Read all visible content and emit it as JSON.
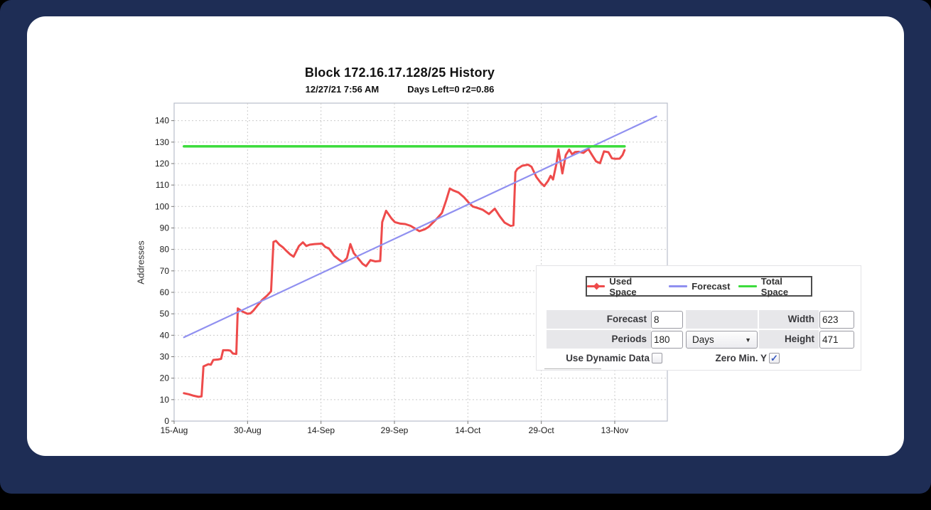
{
  "page": {
    "outer_background": "#000000",
    "frame_color": "#1e2d55",
    "card_color": "#ffffff"
  },
  "chart_data": {
    "type": "line",
    "title": "Block 172.16.17.128/25 History",
    "subtitle_left": "12/27/21 7:56 AM",
    "subtitle_right": "Days Left=0 r2=0.86",
    "grid": true,
    "legend_position": "overlay-bottom-right",
    "x_axis": {
      "unit": "date (days since 15-Aug)",
      "tick_labels": [
        "15-Aug",
        "30-Aug",
        "14-Sep",
        "29-Sep",
        "14-Oct",
        "29-Oct",
        "13-Nov"
      ],
      "tick_days": [
        0,
        15,
        30,
        45,
        60,
        75,
        90
      ],
      "domain_days": [
        0,
        100.8
      ]
    },
    "y_axis": {
      "label": "Addresses",
      "ticks": [
        0,
        10,
        20,
        30,
        40,
        50,
        60,
        70,
        80,
        90,
        100,
        110,
        120,
        130,
        140
      ],
      "domain": [
        0,
        148.2
      ]
    },
    "series": [
      {
        "name": "Used Space",
        "color": "#ee4b4b",
        "stroke_width": 3,
        "points": [
          [
            2,
            13
          ],
          [
            3,
            12.5
          ],
          [
            4,
            11.8
          ],
          [
            5,
            11.3
          ],
          [
            5.6,
            11.5
          ],
          [
            6,
            25.5
          ],
          [
            7,
            26.5
          ],
          [
            7.5,
            26.3
          ],
          [
            8,
            28.5
          ],
          [
            9,
            28.7
          ],
          [
            9.6,
            29
          ],
          [
            10,
            33
          ],
          [
            11,
            33
          ],
          [
            11.5,
            32.8
          ],
          [
            12,
            31.5
          ],
          [
            12.7,
            31.3
          ],
          [
            13,
            52.5
          ],
          [
            14,
            51
          ],
          [
            15,
            50
          ],
          [
            15.6,
            50.2
          ],
          [
            16.2,
            51.5
          ],
          [
            17,
            53.8
          ],
          [
            18,
            56.5
          ],
          [
            19,
            58.5
          ],
          [
            19.8,
            60.5
          ],
          [
            20.3,
            83.5
          ],
          [
            20.8,
            84
          ],
          [
            21.5,
            82.2
          ],
          [
            22.2,
            81
          ],
          [
            22.9,
            79.4
          ],
          [
            23.7,
            77.7
          ],
          [
            24.4,
            76.6
          ],
          [
            25.5,
            81.6
          ],
          [
            26.3,
            83.3
          ],
          [
            27,
            81.6
          ],
          [
            27.7,
            82.2
          ],
          [
            28.7,
            82.5
          ],
          [
            30.2,
            82.7
          ],
          [
            30.9,
            81.1
          ],
          [
            31.6,
            80.5
          ],
          [
            32.7,
            77
          ],
          [
            33.8,
            75
          ],
          [
            34.5,
            74
          ],
          [
            35.3,
            76
          ],
          [
            36,
            82.5
          ],
          [
            36.7,
            78.3
          ],
          [
            37.5,
            76.1
          ],
          [
            38.5,
            73.3
          ],
          [
            39.2,
            72.2
          ],
          [
            40.1,
            75
          ],
          [
            41.1,
            74.4
          ],
          [
            42.1,
            74.6
          ],
          [
            42.5,
            92.7
          ],
          [
            43.3,
            98
          ],
          [
            44.4,
            94.4
          ],
          [
            45.1,
            92.7
          ],
          [
            46.2,
            92
          ],
          [
            47.2,
            91.8
          ],
          [
            48.3,
            91
          ],
          [
            49.1,
            89.9
          ],
          [
            50.1,
            88.5
          ],
          [
            51.2,
            89.4
          ],
          [
            52,
            90.5
          ],
          [
            52.7,
            92.1
          ],
          [
            53.7,
            94.4
          ],
          [
            54.7,
            97
          ],
          [
            55.6,
            103
          ],
          [
            56.3,
            108.4
          ],
          [
            57,
            107.5
          ],
          [
            58.1,
            106.5
          ],
          [
            59.2,
            104.3
          ],
          [
            60.1,
            102
          ],
          [
            61,
            100
          ],
          [
            62,
            99.3
          ],
          [
            63,
            98.5
          ],
          [
            64.3,
            96.5
          ],
          [
            65.5,
            99
          ],
          [
            66.5,
            95.5
          ],
          [
            67.5,
            92.5
          ],
          [
            68.7,
            91
          ],
          [
            69.3,
            91.2
          ],
          [
            69.7,
            116
          ],
          [
            70.1,
            117.5
          ],
          [
            71.1,
            119
          ],
          [
            72.3,
            119.5
          ],
          [
            73,
            118.5
          ],
          [
            74,
            113.7
          ],
          [
            74.9,
            111
          ],
          [
            75.6,
            109.5
          ],
          [
            76.4,
            112
          ],
          [
            76.9,
            114.3
          ],
          [
            77.4,
            112.6
          ],
          [
            78.1,
            120
          ],
          [
            78.5,
            126.5
          ],
          [
            79.3,
            115.4
          ],
          [
            80,
            124
          ],
          [
            80.7,
            126.5
          ],
          [
            81.3,
            124.3
          ],
          [
            81.9,
            125.4
          ],
          [
            82.7,
            125.5
          ],
          [
            83.6,
            125
          ],
          [
            84.6,
            126.8
          ],
          [
            85.5,
            123.5
          ],
          [
            86.2,
            121
          ],
          [
            87,
            120.2
          ],
          [
            87.8,
            125.7
          ],
          [
            88.7,
            125.3
          ],
          [
            89.4,
            122.5
          ],
          [
            90.1,
            122.2
          ],
          [
            91,
            122.3
          ],
          [
            91.6,
            124
          ],
          [
            92,
            126.3
          ]
        ]
      },
      {
        "name": "Forecast",
        "color": "#9090f0",
        "stroke_width": 2.2,
        "points": [
          [
            2,
            39
          ],
          [
            98.5,
            142
          ]
        ]
      },
      {
        "name": "Total Space",
        "color": "#3ddc3d",
        "stroke_width": 3.5,
        "points": [
          [
            2,
            128
          ],
          [
            92,
            128
          ]
        ]
      }
    ]
  },
  "form": {
    "forecast_label": "Forecast",
    "forecast_value": "8",
    "periods_label": "Periods",
    "periods_value": "180",
    "period_unit": "Days",
    "width_label": "Width",
    "width_value": "623",
    "height_label": "Height",
    "height_value": "471",
    "use_dynamic_label": "Use Dynamic Data",
    "use_dynamic_checked": false,
    "zero_min_label": "Zero Min. Y",
    "zero_min_checked": true
  }
}
